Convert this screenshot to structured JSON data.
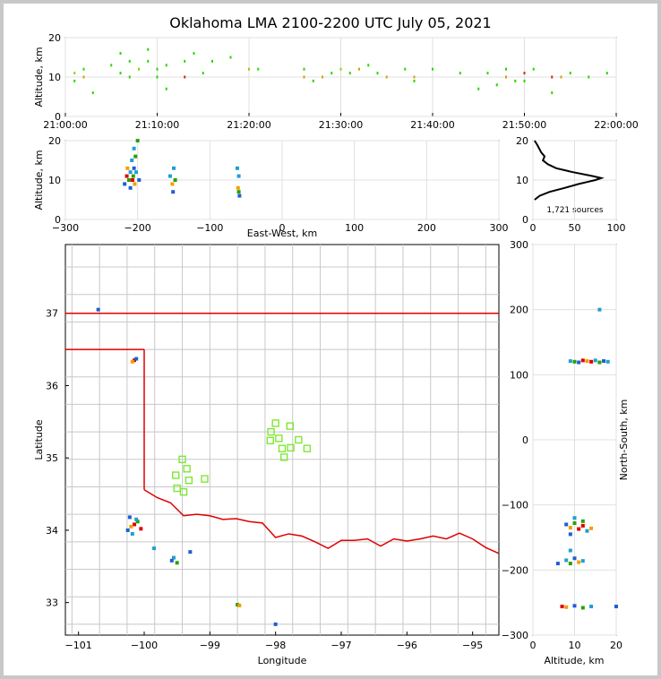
{
  "figure": {
    "title": "Oklahoma LMA 2100-2200 UTC July 05, 2021"
  },
  "colors": {
    "map_lines": "#c8c8c8",
    "state_border": "#e00000",
    "stations": "#7ee832",
    "axis": "#000000",
    "grid": "#e0e0e0"
  },
  "chart_data": [
    {
      "id": "time-height",
      "type": "scatter",
      "ylabel": "Altitude, km",
      "ylim": [
        0,
        20
      ],
      "yticks": [
        "0",
        "10",
        "20"
      ],
      "xticks": [
        "21:00:00",
        "21:10:00",
        "21:20:00",
        "21:30:00",
        "21:40:00",
        "21:50:00",
        "22:00:00"
      ],
      "xlim_minutes": [
        0,
        60
      ],
      "points": [
        [
          1,
          9,
          "#2ad400"
        ],
        [
          1,
          11,
          "#8bd400"
        ],
        [
          2,
          10,
          "#d4a000"
        ],
        [
          2,
          12,
          "#2ad400"
        ],
        [
          3,
          6,
          "#2ad400"
        ],
        [
          5,
          13,
          "#2ad400"
        ],
        [
          6,
          11,
          "#2ad400"
        ],
        [
          6,
          16,
          "#2ad400"
        ],
        [
          7,
          14,
          "#2ad400"
        ],
        [
          7,
          10,
          "#2ad400"
        ],
        [
          8,
          12,
          "#8bd400"
        ],
        [
          9,
          17,
          "#2ad400"
        ],
        [
          9,
          14,
          "#2ad400"
        ],
        [
          10,
          10,
          "#2ad400"
        ],
        [
          10,
          12,
          "#2ad400"
        ],
        [
          11,
          13,
          "#2ad400"
        ],
        [
          11,
          7,
          "#2ad400"
        ],
        [
          13,
          14,
          "#2ad400"
        ],
        [
          13,
          10,
          "#d42a00"
        ],
        [
          14,
          16,
          "#2ad400"
        ],
        [
          15,
          11,
          "#2ad400"
        ],
        [
          16,
          14,
          "#2ad400"
        ],
        [
          18,
          15,
          "#2ad400"
        ],
        [
          20,
          12,
          "#8bd400"
        ],
        [
          21,
          12,
          "#2ad400"
        ],
        [
          26,
          10,
          "#d4a000"
        ],
        [
          26,
          12,
          "#2ad400"
        ],
        [
          27,
          9,
          "#2ad400"
        ],
        [
          28,
          10,
          "#d4a000"
        ],
        [
          29,
          11,
          "#2ad400"
        ],
        [
          30,
          12,
          "#8bd400"
        ],
        [
          31,
          11,
          "#2ad400"
        ],
        [
          32,
          12,
          "#d4a000"
        ],
        [
          33,
          13,
          "#2ad400"
        ],
        [
          34,
          11,
          "#2ad400"
        ],
        [
          35,
          10,
          "#d4a000"
        ],
        [
          37,
          12,
          "#2ad400"
        ],
        [
          38,
          10,
          "#d4a000"
        ],
        [
          38,
          9,
          "#2ad400"
        ],
        [
          40,
          12,
          "#2ad400"
        ],
        [
          43,
          11,
          "#2ad400"
        ],
        [
          45,
          7,
          "#2ad400"
        ],
        [
          46,
          11,
          "#2ad400"
        ],
        [
          47,
          8,
          "#2ad400"
        ],
        [
          48,
          10,
          "#d4a000"
        ],
        [
          48,
          12,
          "#2ad400"
        ],
        [
          49,
          9,
          "#2ad400"
        ],
        [
          50,
          11,
          "#d42a00"
        ],
        [
          50,
          9,
          "#2ad400"
        ],
        [
          51,
          12,
          "#2ad400"
        ],
        [
          53,
          10,
          "#d42a00"
        ],
        [
          53,
          6,
          "#2ad400"
        ],
        [
          54,
          10,
          "#d4a000"
        ],
        [
          55,
          11,
          "#2ad400"
        ],
        [
          57,
          10,
          "#2ad400"
        ],
        [
          59,
          11,
          "#2ad400"
        ]
      ]
    },
    {
      "id": "ew-height",
      "type": "scatter",
      "xlabel": "East-West, km",
      "ylabel": "Altitude, km",
      "xlim": [
        -300,
        300
      ],
      "ylim": [
        0,
        20
      ],
      "xticks": [
        "−300",
        "−200",
        "−100",
        "0",
        "100",
        "200",
        "300"
      ],
      "yticks": [
        "0",
        "10",
        "20"
      ],
      "points": [
        [
          -218,
          9,
          "#1f5fd0"
        ],
        [
          -215,
          11,
          "#e00000"
        ],
        [
          -214,
          13,
          "#f0a000"
        ],
        [
          -212,
          10,
          "#2aa000"
        ],
        [
          -210,
          12,
          "#1f9fd0"
        ],
        [
          -210,
          8,
          "#1f5fd0"
        ],
        [
          -208,
          15,
          "#1f9fd0"
        ],
        [
          -207,
          10,
          "#e00000"
        ],
        [
          -206,
          11,
          "#2aa000"
        ],
        [
          -205,
          13,
          "#1f5fd0"
        ],
        [
          -205,
          18,
          "#1f9fd0"
        ],
        [
          -204,
          9,
          "#f0a000"
        ],
        [
          -203,
          16,
          "#2aa000"
        ],
        [
          -202,
          12,
          "#1f9fd0"
        ],
        [
          -200,
          20,
          "#2aa000"
        ],
        [
          -198,
          10,
          "#1f5fd0"
        ],
        [
          -155,
          11,
          "#1f9fd0"
        ],
        [
          -152,
          9,
          "#f0a000"
        ],
        [
          -151,
          7,
          "#1f5fd0"
        ],
        [
          -150,
          13,
          "#1f9fd0"
        ],
        [
          -148,
          10,
          "#2aa000"
        ],
        [
          -62,
          13,
          "#1f9fd0"
        ],
        [
          -61,
          8,
          "#f0a000"
        ],
        [
          -60,
          7,
          "#2aa000"
        ],
        [
          -59,
          6,
          "#1f5fd0"
        ],
        [
          -60,
          11,
          "#1f9fd0"
        ]
      ]
    },
    {
      "id": "histogram",
      "type": "line",
      "xlim": [
        0,
        100
      ],
      "ylim": [
        0,
        20
      ],
      "xticks": [
        "0",
        "50",
        "100"
      ],
      "yticks": [
        "0",
        "10",
        "20"
      ],
      "annotation": "1,721 sources",
      "x": [
        2,
        8,
        20,
        38,
        55,
        65,
        75,
        82,
        72,
        48,
        28,
        18,
        12,
        14,
        10,
        5,
        2
      ],
      "y": [
        5,
        6,
        7,
        8,
        9,
        9.5,
        10,
        10.5,
        11,
        12,
        13,
        14,
        15,
        16,
        17,
        19,
        20
      ]
    },
    {
      "id": "plan-view",
      "type": "scatter",
      "xlabel": "Longitude",
      "ylabel": "Latitude",
      "xlim": [
        -101.2,
        -94.6
      ],
      "ylim": [
        32.55,
        37.95
      ],
      "xticks": [
        "−101",
        "−100",
        "−99",
        "−98",
        "−97",
        "−96",
        "−95"
      ],
      "yticks": [
        "33",
        "34",
        "35",
        "36",
        "37"
      ],
      "stations": [
        [
          -98.0,
          35.48
        ],
        [
          -97.78,
          35.44
        ],
        [
          -98.07,
          35.36
        ],
        [
          -98.08,
          35.24
        ],
        [
          -97.95,
          35.27
        ],
        [
          -97.77,
          35.14
        ],
        [
          -97.65,
          35.25
        ],
        [
          -97.52,
          35.13
        ],
        [
          -97.9,
          35.13
        ],
        [
          -97.87,
          35.01
        ],
        [
          -99.42,
          34.98
        ],
        [
          -99.35,
          34.85
        ],
        [
          -99.52,
          34.76
        ],
        [
          -99.32,
          34.69
        ],
        [
          -99.08,
          34.71
        ],
        [
          -99.5,
          34.58
        ],
        [
          -99.4,
          34.53
        ]
      ],
      "points": [
        [
          -100.15,
          34.08,
          "#e00000"
        ],
        [
          -100.2,
          34.05,
          "#f0a000"
        ],
        [
          -100.1,
          34.12,
          "#2aa000"
        ],
        [
          -100.25,
          34.0,
          "#1f5fd0"
        ],
        [
          -100.12,
          34.15,
          "#1f9fd0"
        ],
        [
          -100.18,
          33.95,
          "#1f9fd0"
        ],
        [
          -100.22,
          34.18,
          "#1f5fd0"
        ],
        [
          -100.05,
          34.02,
          "#e00000"
        ],
        [
          -99.55,
          33.62,
          "#1f9fd0"
        ],
        [
          -99.5,
          33.55,
          "#2aa000"
        ],
        [
          -99.58,
          33.58,
          "#1f5fd0"
        ],
        [
          -99.3,
          33.7,
          "#1f5fd0"
        ],
        [
          -100.15,
          36.35,
          "#e00000"
        ],
        [
          -100.18,
          36.33,
          "#f0a000"
        ],
        [
          -100.12,
          36.37,
          "#1f5fd0"
        ],
        [
          -98.58,
          32.97,
          "#2aa000"
        ],
        [
          -98.55,
          32.96,
          "#f0a000"
        ],
        [
          -98.0,
          32.7,
          "#1f5fd0"
        ],
        [
          -100.7,
          37.05,
          "#1f5fd0"
        ],
        [
          -99.85,
          33.75,
          "#1f9fd0"
        ]
      ]
    },
    {
      "id": "ns-height",
      "type": "scatter",
      "xlabel": "Altitude, km",
      "ylabel": "North-South, km",
      "xlim": [
        0,
        20
      ],
      "ylim": [
        -300,
        300
      ],
      "xticks": [
        "0",
        "10",
        "20"
      ],
      "yticks": [
        "−300",
        "−200",
        "−100",
        "0",
        "100",
        "200",
        "300"
      ],
      "points": [
        [
          9,
          121,
          "#1f9fd0"
        ],
        [
          10,
          120,
          "#2aa000"
        ],
        [
          11,
          119,
          "#1f5fd0"
        ],
        [
          12,
          122,
          "#e00000"
        ],
        [
          13,
          121,
          "#f0a000"
        ],
        [
          14,
          120,
          "#e00000"
        ],
        [
          15,
          122,
          "#1f9fd0"
        ],
        [
          16,
          119,
          "#2aa000"
        ],
        [
          17,
          121,
          "#1f5fd0"
        ],
        [
          18,
          120,
          "#1f9fd0"
        ],
        [
          16,
          200,
          "#1f9fd0"
        ],
        [
          8,
          -130,
          "#1f5fd0"
        ],
        [
          9,
          -135,
          "#f0a000"
        ],
        [
          10,
          -128,
          "#2aa000"
        ],
        [
          11,
          -137,
          "#e00000"
        ],
        [
          12,
          -132,
          "#e00000"
        ],
        [
          13,
          -140,
          "#1f9fd0"
        ],
        [
          14,
          -136,
          "#f0a000"
        ],
        [
          10,
          -120,
          "#1f9fd0"
        ],
        [
          9,
          -145,
          "#1f5fd0"
        ],
        [
          12,
          -125,
          "#2aa000"
        ],
        [
          8,
          -185,
          "#1f9fd0"
        ],
        [
          9,
          -190,
          "#2aa000"
        ],
        [
          10,
          -182,
          "#1f5fd0"
        ],
        [
          11,
          -188,
          "#f0a000"
        ],
        [
          12,
          -186,
          "#1f9fd0"
        ],
        [
          6,
          -190,
          "#1f5fd0"
        ],
        [
          9,
          -170,
          "#1f9fd0"
        ],
        [
          7,
          -256,
          "#e00000"
        ],
        [
          8,
          -257,
          "#f0a000"
        ],
        [
          10,
          -255,
          "#1f5fd0"
        ],
        [
          12,
          -258,
          "#2aa000"
        ],
        [
          14,
          -256,
          "#1f9fd0"
        ],
        [
          20,
          -256,
          "#1f5fd0"
        ]
      ]
    }
  ]
}
